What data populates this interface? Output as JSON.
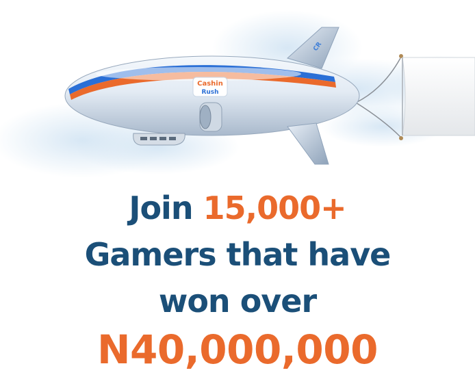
{
  "blimp": {
    "logo_top": "Cashin",
    "logo_bottom": "Rush",
    "icon": "blimp-illustration"
  },
  "headline": {
    "join": "Join",
    "gamers_count": "15,000+",
    "line2": "Gamers that have",
    "line3": "won over",
    "amount": "N40,000,000"
  },
  "colors": {
    "navy": "#1b4f78",
    "orange": "#ea6a2c",
    "blue_stripe": "#2a6fd6"
  }
}
